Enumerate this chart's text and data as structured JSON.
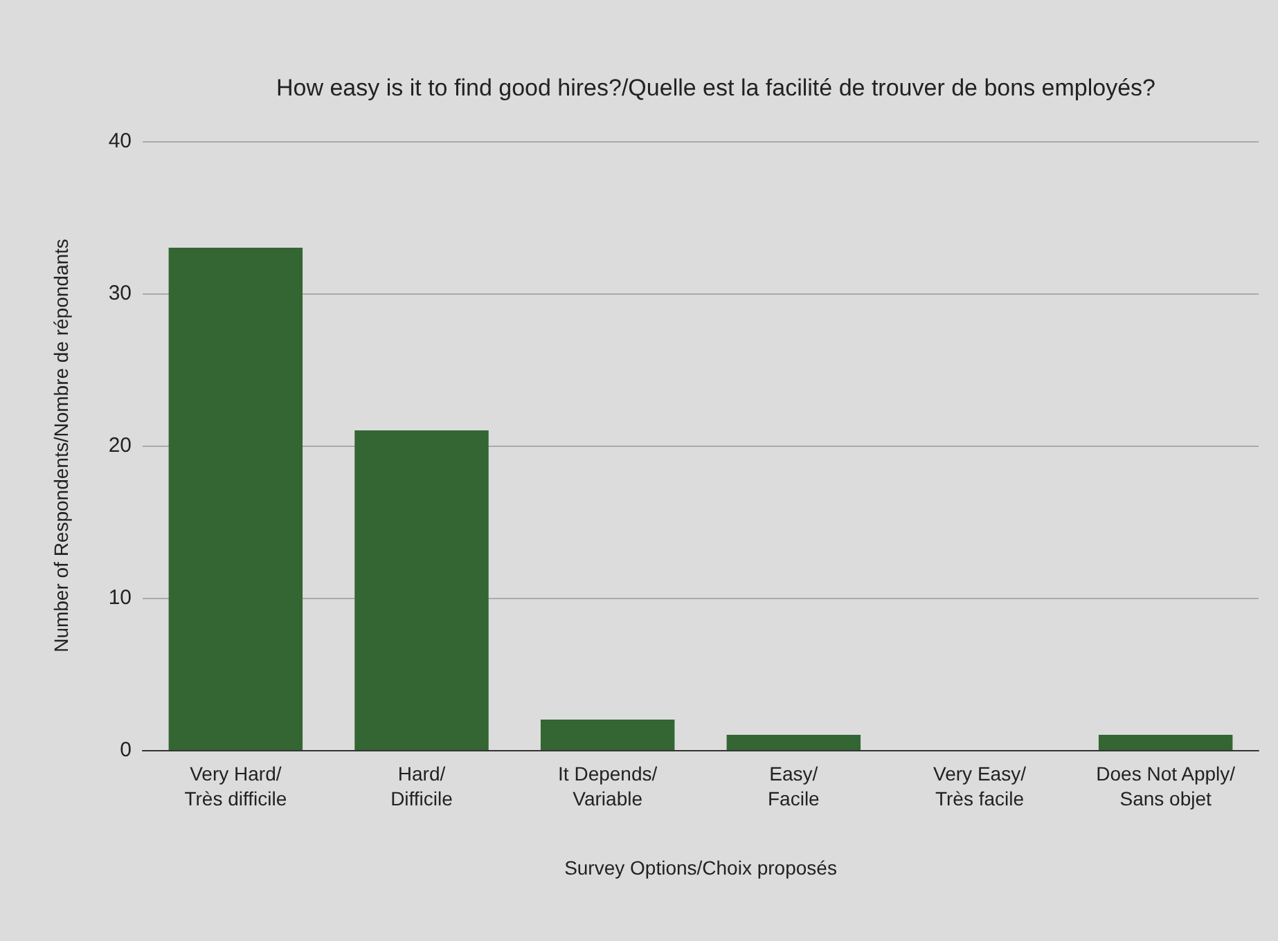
{
  "chart_data": {
    "type": "bar",
    "title": "How easy is it to find good hires?/Quelle est la facilité de trouver de bons employés?",
    "xlabel": "Survey Options/Choix proposés",
    "ylabel": "Number of Respondents/Nombre de répondants",
    "categories": [
      "Very Hard/\nTrès difficile",
      "Hard/\nDifficile",
      "It Depends/\nVariable",
      "Easy/\nFacile",
      "Very Easy/\nTrès facile",
      "Does Not Apply/\nSans objet"
    ],
    "values": [
      33,
      21,
      2,
      1,
      0,
      1
    ],
    "color": "#336633",
    "ylim": [
      0,
      40
    ],
    "yticks": [
      0,
      10,
      20,
      30,
      40
    ],
    "grid": "y"
  }
}
